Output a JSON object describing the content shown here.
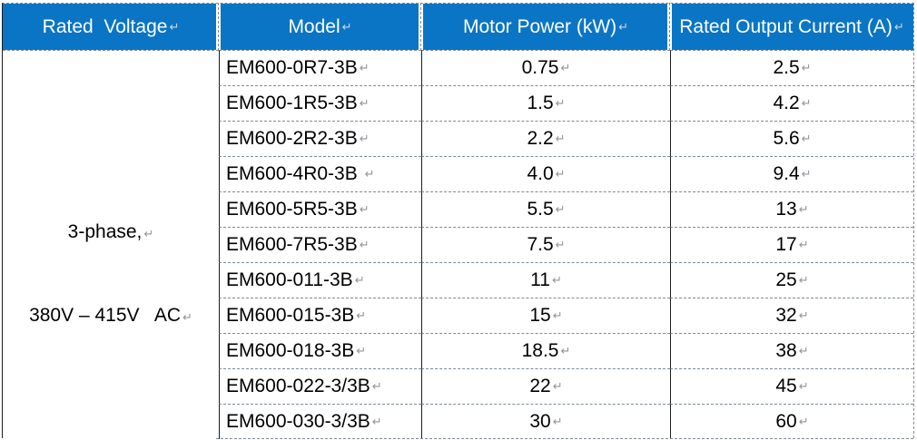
{
  "table": {
    "header_labels": [
      "Rated  Voltage",
      "Model",
      "Motor Power (kW)",
      "Rated Output Current (A)"
    ],
    "voltage_cell": {
      "line1": "3-phase,",
      "line2": "380V – 415V   AC"
    },
    "rows": [
      {
        "model": "EM600-0R7-3B",
        "power_kw": "0.75",
        "current_a": "2.5"
      },
      {
        "model": "EM600-1R5-3B",
        "power_kw": "1.5",
        "current_a": "4.2"
      },
      {
        "model": "EM600-2R2-3B",
        "power_kw": "2.2",
        "current_a": "5.6"
      },
      {
        "model": "EM600-4R0-3B ",
        "power_kw": "4.0",
        "current_a": "9.4"
      },
      {
        "model": "EM600-5R5-3B",
        "power_kw": "5.5",
        "current_a": "13"
      },
      {
        "model": "EM600-7R5-3B",
        "power_kw": "7.5",
        "current_a": "17"
      },
      {
        "model": "EM600-011-3B",
        "power_kw": "11",
        "current_a": "25"
      },
      {
        "model": "EM600-015-3B",
        "power_kw": "15",
        "current_a": "32"
      },
      {
        "model": "EM600-018-3B",
        "power_kw": "18.5",
        "current_a": "38"
      },
      {
        "model": "EM600-022-3/3B",
        "power_kw": "22",
        "current_a": "45"
      },
      {
        "model": "EM600-030-3/3B",
        "power_kw": "30",
        "current_a": "60"
      }
    ],
    "return_mark": "↵",
    "colors": {
      "header_bg": "#0B75C5",
      "header_fg": "#FFFFFF",
      "grid_dash": "#7D8A99",
      "grid_solid": "#1D1D1F",
      "mark": "#8F969E",
      "hmark": "#C9D6E2",
      "text": "#000000"
    }
  }
}
